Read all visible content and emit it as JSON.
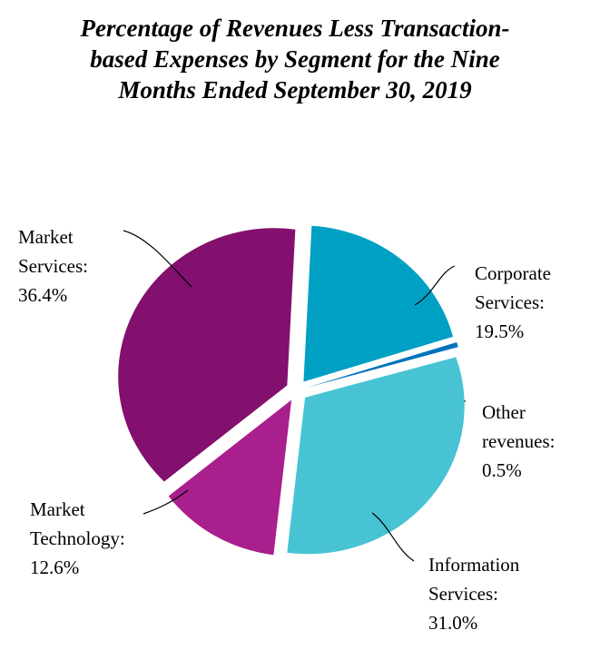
{
  "chart_data": {
    "type": "pie",
    "title_lines": [
      "Percentage of Revenues Less Transaction-",
      "based Expenses by Segment for the Nine",
      "Months Ended September 30, 2019"
    ],
    "slices": [
      {
        "label_lines": [
          "Corporate",
          "Services:",
          "19.5%"
        ],
        "value": 19.5,
        "color": "#00A0C4"
      },
      {
        "label_lines": [
          "Other",
          "revenues:",
          "0.5%"
        ],
        "value": 0.5,
        "color": "#0072BC"
      },
      {
        "label_lines": [
          "Information",
          "Services:",
          "31.0%"
        ],
        "value": 31.0,
        "color": "#48C3D3"
      },
      {
        "label_lines": [
          "Market",
          "Technology:",
          "12.6%"
        ],
        "value": 12.6,
        "color": "#A91F8E"
      },
      {
        "label_lines": [
          "Market",
          "Services:",
          "36.4%"
        ],
        "value": 36.4,
        "color": "#830F6E"
      }
    ],
    "start_angle_deg": 3,
    "direction": "clockwise",
    "exploded": true
  }
}
